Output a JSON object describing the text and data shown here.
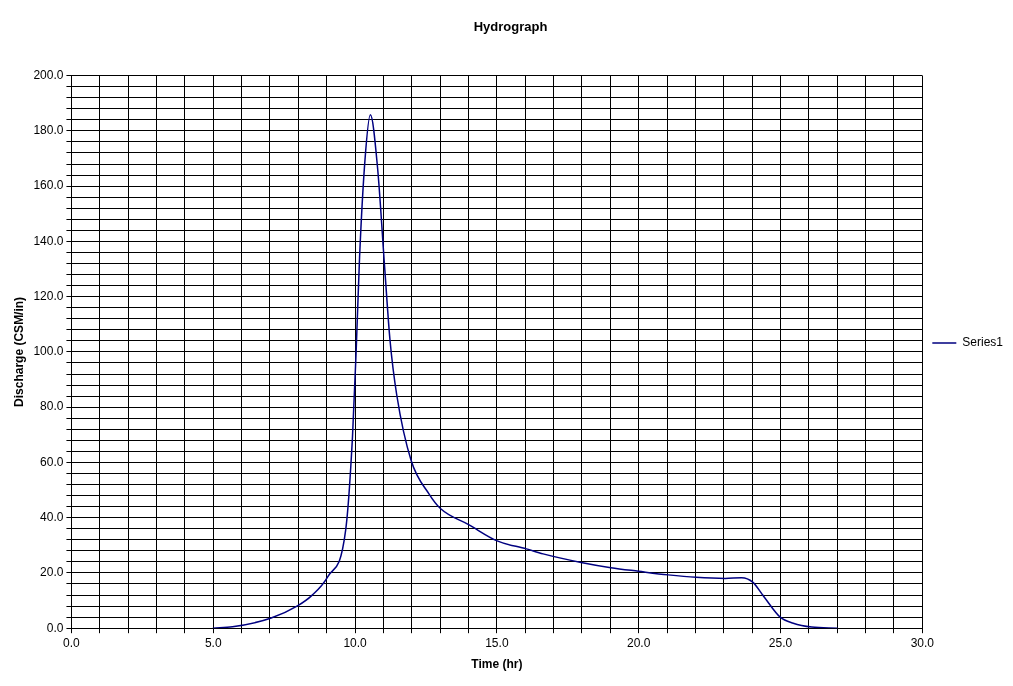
{
  "chart_data": {
    "type": "line",
    "title": "Hydrograph",
    "xlabel": "Time (hr)",
    "ylabel": "Discharge (CSM/in)",
    "x": [
      5.0,
      5.68,
      7.02,
      7.97,
      8.47,
      9.04,
      9.67,
      9.91,
      10.04,
      10.16,
      10.35,
      10.54,
      10.79,
      11.05,
      11.23,
      11.47,
      11.98,
      12.6,
      13.01,
      14.02,
      15.01,
      16.04,
      16.63,
      17.97,
      19.02,
      20.0,
      21.04,
      22.02,
      23.05,
      23.63,
      24.02,
      24.41,
      24.99,
      25.45,
      26.1,
      27.0
    ],
    "series": [
      {
        "name": "Series1",
        "color": "#000080",
        "values": [
          0,
          0.5,
          3.6,
          8.1,
          11.8,
          18.7,
          35.6,
          69.4,
          100.7,
          134.5,
          169.5,
          185.8,
          167,
          129.6,
          104.5,
          84.4,
          60.6,
          48.7,
          43.3,
          37.4,
          31.6,
          28.7,
          26.9,
          23.8,
          21.9,
          20.6,
          19.3,
          18.4,
          18.0,
          18.3,
          16.7,
          11.5,
          4.0,
          1.8,
          0.4,
          0
        ]
      }
    ],
    "xlim": [
      0,
      30
    ],
    "ylim": [
      0,
      200
    ],
    "xticks": [
      {
        "value": 0,
        "label": "0.0"
      },
      {
        "value": 1,
        "label": null
      },
      {
        "value": 2,
        "label": null
      },
      {
        "value": 3,
        "label": null
      },
      {
        "value": 4,
        "label": null
      },
      {
        "value": 5,
        "label": "5.0"
      },
      {
        "value": 6,
        "label": null
      },
      {
        "value": 7,
        "label": null
      },
      {
        "value": 8,
        "label": null
      },
      {
        "value": 9,
        "label": null
      },
      {
        "value": 10,
        "label": "10.0"
      },
      {
        "value": 11,
        "label": null
      },
      {
        "value": 12,
        "label": null
      },
      {
        "value": 13,
        "label": null
      },
      {
        "value": 14,
        "label": null
      },
      {
        "value": 15,
        "label": "15.0"
      },
      {
        "value": 16,
        "label": null
      },
      {
        "value": 17,
        "label": null
      },
      {
        "value": 18,
        "label": null
      },
      {
        "value": 19,
        "label": null
      },
      {
        "value": 20,
        "label": "20.0"
      },
      {
        "value": 21,
        "label": null
      },
      {
        "value": 22,
        "label": null
      },
      {
        "value": 23,
        "label": null
      },
      {
        "value": 24,
        "label": null
      },
      {
        "value": 25,
        "label": "25.0"
      },
      {
        "value": 26,
        "label": null
      },
      {
        "value": 27,
        "label": null
      },
      {
        "value": 28,
        "label": null
      },
      {
        "value": 29,
        "label": null
      },
      {
        "value": 30,
        "label": "30.0"
      }
    ],
    "yticks": [
      {
        "value": 0,
        "label": "0.0"
      },
      {
        "value": 4,
        "label": null
      },
      {
        "value": 8,
        "label": null
      },
      {
        "value": 12,
        "label": null
      },
      {
        "value": 16,
        "label": null
      },
      {
        "value": 20,
        "label": "20.0"
      },
      {
        "value": 24,
        "label": null
      },
      {
        "value": 28,
        "label": null
      },
      {
        "value": 32,
        "label": null
      },
      {
        "value": 36,
        "label": null
      },
      {
        "value": 40,
        "label": "40.0"
      },
      {
        "value": 44,
        "label": null
      },
      {
        "value": 48,
        "label": null
      },
      {
        "value": 52,
        "label": null
      },
      {
        "value": 56,
        "label": null
      },
      {
        "value": 60,
        "label": "60.0"
      },
      {
        "value": 64,
        "label": null
      },
      {
        "value": 68,
        "label": null
      },
      {
        "value": 72,
        "label": null
      },
      {
        "value": 76,
        "label": null
      },
      {
        "value": 80,
        "label": "80.0"
      },
      {
        "value": 84,
        "label": null
      },
      {
        "value": 88,
        "label": null
      },
      {
        "value": 92,
        "label": null
      },
      {
        "value": 96,
        "label": null
      },
      {
        "value": 100,
        "label": "100.0"
      },
      {
        "value": 104,
        "label": null
      },
      {
        "value": 108,
        "label": null
      },
      {
        "value": 112,
        "label": null
      },
      {
        "value": 116,
        "label": null
      },
      {
        "value": 120,
        "label": "120.0"
      },
      {
        "value": 124,
        "label": null
      },
      {
        "value": 128,
        "label": null
      },
      {
        "value": 132,
        "label": null
      },
      {
        "value": 136,
        "label": null
      },
      {
        "value": 140,
        "label": "140.0"
      },
      {
        "value": 144,
        "label": null
      },
      {
        "value": 148,
        "label": null
      },
      {
        "value": 152,
        "label": null
      },
      {
        "value": 156,
        "label": null
      },
      {
        "value": 160,
        "label": "160.0"
      },
      {
        "value": 164,
        "label": null
      },
      {
        "value": 168,
        "label": null
      },
      {
        "value": 172,
        "label": null
      },
      {
        "value": 176,
        "label": null
      },
      {
        "value": 180,
        "label": "180.0"
      },
      {
        "value": 184,
        "label": null
      },
      {
        "value": 188,
        "label": null
      },
      {
        "value": 192,
        "label": null
      },
      {
        "value": 196,
        "label": null
      },
      {
        "value": 200,
        "label": "200.0"
      }
    ],
    "grid": true,
    "legend": "right",
    "marker": "none",
    "line_style": "solid"
  }
}
